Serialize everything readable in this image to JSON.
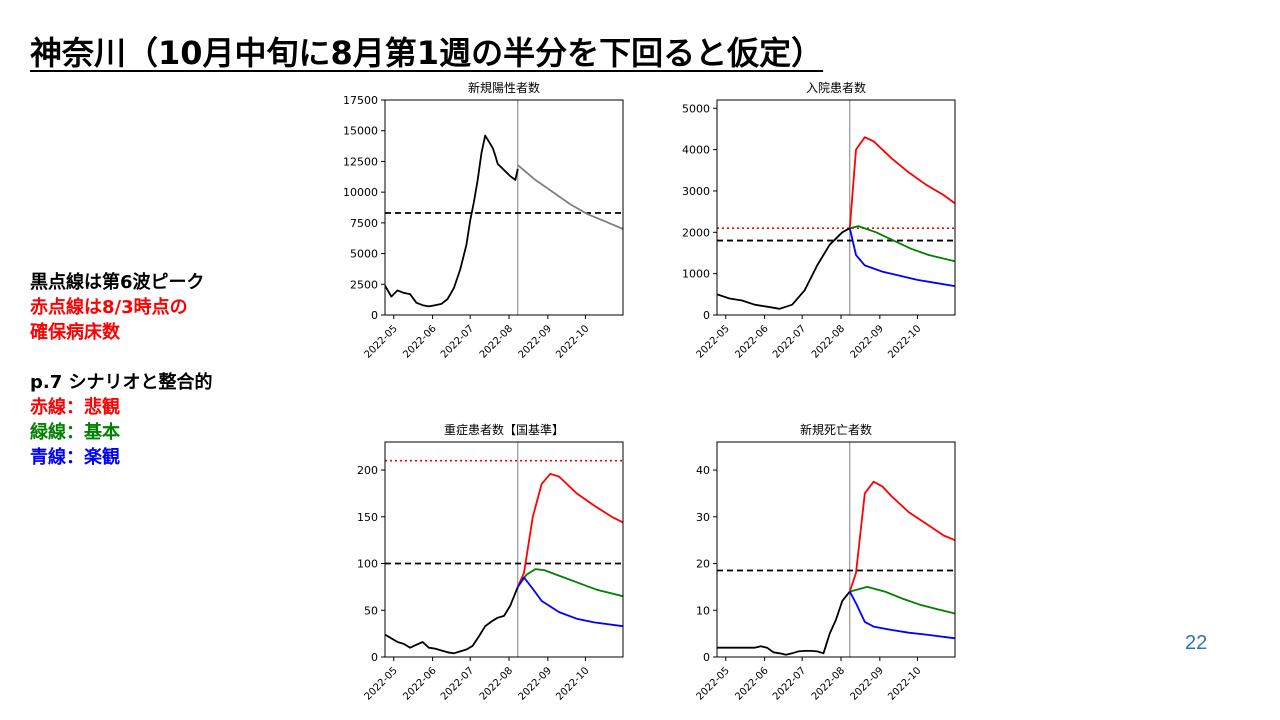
{
  "slide": {
    "title": "神奈川（10月中旬に8月第1週の半分を下回ると仮定）",
    "page_number": "22",
    "notes": [
      {
        "text": "黒点線は第6波ピーク",
        "color": "#000000"
      },
      {
        "text": "赤点線は8/3時点の",
        "color": "#ff0000"
      },
      {
        "text": "確保病床数",
        "color": "#ff0000"
      },
      {
        "text": "",
        "color": "#000000"
      },
      {
        "text": "p.7 シナリオと整合的",
        "color": "#000000"
      },
      {
        "text": "赤線：悲観",
        "color": "#ff0000"
      },
      {
        "text": "緑線：基本",
        "color": "#008000"
      },
      {
        "text": "青線：楽観",
        "color": "#0000ff"
      }
    ]
  },
  "chart_data": [
    {
      "type": "line",
      "title": "新規陽性者数",
      "ylim": [
        0,
        17500
      ],
      "yticks": [
        0,
        2500,
        5000,
        7500,
        10000,
        12500,
        15000,
        17500
      ],
      "xlim": [
        "2022-04-24",
        "2022-10-31"
      ],
      "xticks": [
        "2022-05",
        "2022-06",
        "2022-07",
        "2022-08",
        "2022-09",
        "2022-10"
      ],
      "xtick_dates": [
        "2022-05-01",
        "2022-06-01",
        "2022-07-01",
        "2022-08-01",
        "2022-09-01",
        "2022-10-01"
      ],
      "vline": "2022-08-08",
      "hlines": [
        {
          "y": 8300,
          "color": "#000000",
          "style": "dashed"
        }
      ],
      "series": [
        {
          "color": "#000000",
          "x": [
            "2022-04-24",
            "2022-04-29",
            "2022-05-04",
            "2022-05-09",
            "2022-05-14",
            "2022-05-19",
            "2022-05-24",
            "2022-05-29",
            "2022-06-03",
            "2022-06-08",
            "2022-06-13",
            "2022-06-18",
            "2022-06-23",
            "2022-06-28",
            "2022-07-01",
            "2022-07-04",
            "2022-07-07",
            "2022-07-10",
            "2022-07-13",
            "2022-07-16",
            "2022-07-19",
            "2022-07-21",
            "2022-07-23",
            "2022-07-25",
            "2022-07-27",
            "2022-07-29",
            "2022-07-31",
            "2022-08-02",
            "2022-08-04",
            "2022-08-06",
            "2022-08-08"
          ],
          "y": [
            2400,
            1500,
            2000,
            1800,
            1700,
            1000,
            800,
            700,
            800,
            900,
            1300,
            2200,
            3700,
            5700,
            7700,
            9200,
            11000,
            13200,
            14600,
            14100,
            13600,
            13000,
            12300,
            12100,
            11900,
            11700,
            11500,
            11300,
            11150,
            11000,
            11900
          ]
        },
        {
          "color": "#808080",
          "x": [
            "2022-08-08",
            "2022-08-22",
            "2022-09-05",
            "2022-09-19",
            "2022-10-03",
            "2022-10-17",
            "2022-10-31"
          ],
          "y": [
            12200,
            11000,
            10000,
            9000,
            8200,
            7600,
            7000
          ]
        }
      ]
    },
    {
      "type": "line",
      "title": "入院患者数",
      "ylim": [
        0,
        5200
      ],
      "yticks": [
        0,
        1000,
        2000,
        3000,
        4000,
        5000
      ],
      "xlim": [
        "2022-04-24",
        "2022-10-31"
      ],
      "xticks": [
        "2022-05",
        "2022-06",
        "2022-07",
        "2022-08",
        "2022-09",
        "2022-10"
      ],
      "xtick_dates": [
        "2022-05-01",
        "2022-06-01",
        "2022-07-01",
        "2022-08-01",
        "2022-09-01",
        "2022-10-01"
      ],
      "vline": "2022-08-08",
      "hlines": [
        {
          "y": 1800,
          "color": "#000000",
          "style": "dashed"
        },
        {
          "y": 2100,
          "color": "#ff0000",
          "style": "dotted"
        }
      ],
      "series": [
        {
          "color": "#000000",
          "x": [
            "2022-04-24",
            "2022-05-04",
            "2022-05-14",
            "2022-05-24",
            "2022-06-03",
            "2022-06-13",
            "2022-06-23",
            "2022-07-03",
            "2022-07-13",
            "2022-07-23",
            "2022-08-02",
            "2022-08-08"
          ],
          "y": [
            500,
            400,
            350,
            250,
            200,
            150,
            250,
            600,
            1200,
            1700,
            2000,
            2100
          ]
        },
        {
          "color": "#ff0000",
          "x": [
            "2022-08-08",
            "2022-08-13",
            "2022-08-20",
            "2022-08-27",
            "2022-09-10",
            "2022-09-24",
            "2022-10-08",
            "2022-10-22",
            "2022-10-31"
          ],
          "y": [
            2100,
            4000,
            4300,
            4200,
            3800,
            3450,
            3150,
            2900,
            2700
          ]
        },
        {
          "color": "#008000",
          "x": [
            "2022-08-08",
            "2022-08-15",
            "2022-08-29",
            "2022-09-12",
            "2022-09-26",
            "2022-10-10",
            "2022-10-31"
          ],
          "y": [
            2100,
            2150,
            2000,
            1800,
            1600,
            1450,
            1300
          ]
        },
        {
          "color": "#0000ff",
          "x": [
            "2022-08-08",
            "2022-08-13",
            "2022-08-20",
            "2022-09-03",
            "2022-09-17",
            "2022-10-01",
            "2022-10-15",
            "2022-10-31"
          ],
          "y": [
            2100,
            1450,
            1200,
            1050,
            950,
            850,
            780,
            700
          ]
        }
      ]
    },
    {
      "type": "line",
      "title": "重症患者数【国基準】",
      "ylim": [
        0,
        230
      ],
      "yticks": [
        0,
        50,
        100,
        150,
        200
      ],
      "xlim": [
        "2022-04-24",
        "2022-10-31"
      ],
      "xticks": [
        "2022-05",
        "2022-06",
        "2022-07",
        "2022-08",
        "2022-09",
        "2022-10"
      ],
      "xtick_dates": [
        "2022-05-01",
        "2022-06-01",
        "2022-07-01",
        "2022-08-01",
        "2022-09-01",
        "2022-10-01"
      ],
      "vline": "2022-08-08",
      "hlines": [
        {
          "y": 100,
          "color": "#000000",
          "style": "dashed"
        },
        {
          "y": 210,
          "color": "#ff0000",
          "style": "dotted"
        }
      ],
      "series": [
        {
          "color": "#000000",
          "x": [
            "2022-04-24",
            "2022-04-29",
            "2022-05-04",
            "2022-05-09",
            "2022-05-14",
            "2022-05-19",
            "2022-05-24",
            "2022-05-29",
            "2022-06-03",
            "2022-06-08",
            "2022-06-13",
            "2022-06-18",
            "2022-06-23",
            "2022-06-28",
            "2022-07-03",
            "2022-07-08",
            "2022-07-13",
            "2022-07-18",
            "2022-07-23",
            "2022-07-28",
            "2022-08-02",
            "2022-08-08"
          ],
          "y": [
            24,
            20,
            16,
            14,
            10,
            13,
            16,
            10,
            9,
            7,
            5,
            4,
            6,
            8,
            12,
            22,
            33,
            38,
            42,
            44,
            55,
            75
          ]
        },
        {
          "color": "#ff0000",
          "x": [
            "2022-08-08",
            "2022-08-13",
            "2022-08-20",
            "2022-08-27",
            "2022-09-03",
            "2022-09-10",
            "2022-09-24",
            "2022-10-08",
            "2022-10-22",
            "2022-10-31"
          ],
          "y": [
            75,
            90,
            150,
            185,
            196,
            193,
            175,
            162,
            150,
            144
          ]
        },
        {
          "color": "#008000",
          "x": [
            "2022-08-08",
            "2022-08-15",
            "2022-08-22",
            "2022-08-29",
            "2022-09-12",
            "2022-09-26",
            "2022-10-10",
            "2022-10-31"
          ],
          "y": [
            75,
            88,
            94,
            93,
            86,
            79,
            72,
            65
          ]
        },
        {
          "color": "#0000ff",
          "x": [
            "2022-08-08",
            "2022-08-13",
            "2022-08-20",
            "2022-08-27",
            "2022-09-10",
            "2022-09-24",
            "2022-10-08",
            "2022-10-31"
          ],
          "y": [
            75,
            85,
            73,
            60,
            48,
            41,
            37,
            33
          ]
        }
      ]
    },
    {
      "type": "line",
      "title": "新規死亡者数",
      "ylim": [
        0,
        46
      ],
      "yticks": [
        0,
        10,
        20,
        30,
        40
      ],
      "xlim": [
        "2022-04-24",
        "2022-10-31"
      ],
      "xticks": [
        "2022-05",
        "2022-06",
        "2022-07",
        "2022-08",
        "2022-09",
        "2022-10"
      ],
      "xtick_dates": [
        "2022-05-01",
        "2022-06-01",
        "2022-07-01",
        "2022-08-01",
        "2022-09-01",
        "2022-10-01"
      ],
      "vline": "2022-08-08",
      "hlines": [
        {
          "y": 18.5,
          "color": "#000000",
          "style": "dashed"
        }
      ],
      "series": [
        {
          "color": "#000000",
          "x": [
            "2022-04-24",
            "2022-05-04",
            "2022-05-14",
            "2022-05-24",
            "2022-05-29",
            "2022-06-03",
            "2022-06-08",
            "2022-06-13",
            "2022-06-18",
            "2022-06-23",
            "2022-06-28",
            "2022-07-03",
            "2022-07-08",
            "2022-07-13",
            "2022-07-18",
            "2022-07-23",
            "2022-07-28",
            "2022-08-02",
            "2022-08-08"
          ],
          "y": [
            2,
            2,
            2,
            2,
            2.3,
            2,
            1,
            0.8,
            0.5,
            0.8,
            1.2,
            1.3,
            1.3,
            1.2,
            0.8,
            5,
            8,
            12,
            14
          ]
        },
        {
          "color": "#ff0000",
          "x": [
            "2022-08-08",
            "2022-08-13",
            "2022-08-20",
            "2022-08-27",
            "2022-09-03",
            "2022-09-10",
            "2022-09-24",
            "2022-10-08",
            "2022-10-22",
            "2022-10-31"
          ],
          "y": [
            14,
            18,
            35,
            37.5,
            36.5,
            34.5,
            31,
            28.5,
            26,
            25
          ]
        },
        {
          "color": "#008000",
          "x": [
            "2022-08-08",
            "2022-08-15",
            "2022-08-22",
            "2022-09-05",
            "2022-09-19",
            "2022-10-03",
            "2022-10-17",
            "2022-10-31"
          ],
          "y": [
            14,
            14.5,
            15,
            14,
            12.5,
            11.2,
            10.2,
            9.3
          ]
        },
        {
          "color": "#0000ff",
          "x": [
            "2022-08-08",
            "2022-08-13",
            "2022-08-20",
            "2022-08-27",
            "2022-09-10",
            "2022-09-24",
            "2022-10-08",
            "2022-10-31"
          ],
          "y": [
            14,
            11.5,
            7.5,
            6.5,
            5.8,
            5.2,
            4.8,
            4
          ]
        }
      ]
    }
  ]
}
